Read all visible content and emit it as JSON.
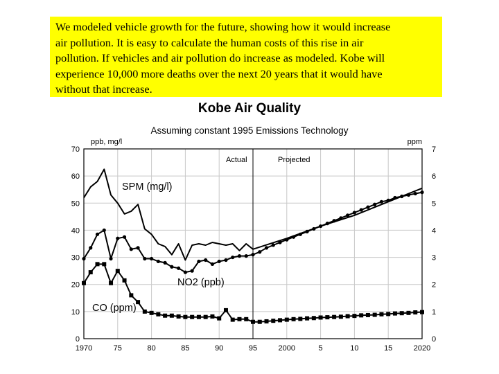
{
  "note": {
    "lines": [
      "We modeled vehicle growth for the future, showing how it would increase",
      "air pollution.  It is easy to calculate the human costs of this rise in air",
      "pollution.  If vehicles and air pollution do increase as modeled. Kobe will",
      "experience 10,000 more deaths over the next 20 years that it would have",
      "without that increase."
    ],
    "background": "#ffff00"
  },
  "chart_data": {
    "type": "line",
    "title": "Kobe Air Quality",
    "subtitle": "Assuming constant 1995 Emissions Technology",
    "y_left_label": "ppb, mg/l",
    "y_right_label": "ppm",
    "ylim_left": [
      0,
      70
    ],
    "ylim_right": [
      0,
      7
    ],
    "xlim": [
      1970,
      2020
    ],
    "x_ticks": [
      {
        "value": 1970,
        "label": "1970"
      },
      {
        "value": 1975,
        "label": "75"
      },
      {
        "value": 1980,
        "label": "80"
      },
      {
        "value": 1985,
        "label": "85"
      },
      {
        "value": 1990,
        "label": "90"
      },
      {
        "value": 1995,
        "label": "95"
      },
      {
        "value": 2000,
        "label": "2000"
      },
      {
        "value": 2005,
        "label": "5"
      },
      {
        "value": 2010,
        "label": "10"
      },
      {
        "value": 2015,
        "label": "15"
      },
      {
        "value": 2020,
        "label": "2020"
      }
    ],
    "y_left_ticks": [
      "0",
      "10",
      "20",
      "30",
      "40",
      "50",
      "60",
      "70"
    ],
    "y_right_ticks": [
      "0",
      "1",
      "2",
      "3",
      "4",
      "5",
      "6",
      "7"
    ],
    "grid": true,
    "divider_year": 1995,
    "period_labels": {
      "actual": "Actual",
      "projected": "Projected"
    },
    "series": [
      {
        "name": "SPM (mg/l)",
        "axis": "left",
        "marker": "none",
        "x": [
          1970,
          1971,
          1972,
          1973,
          1974,
          1975,
          1976,
          1977,
          1978,
          1979,
          1980,
          1981,
          1982,
          1983,
          1984,
          1985,
          1986,
          1987,
          1988,
          1989,
          1990,
          1991,
          1992,
          1993,
          1994,
          1995,
          2000,
          2005,
          2010,
          2015,
          2020
        ],
        "y": [
          52,
          56,
          58,
          62.5,
          53,
          50,
          46,
          47,
          49.5,
          40.5,
          38.5,
          35,
          34,
          31,
          35,
          29,
          34.5,
          35,
          34.5,
          35.5,
          35,
          34.5,
          35,
          32.5,
          35,
          33,
          37,
          41.5,
          45.5,
          50.5,
          55.5
        ]
      },
      {
        "name": "NO2 (ppb)",
        "axis": "left",
        "marker": "circle",
        "x": [
          1970,
          1971,
          1972,
          1973,
          1974,
          1975,
          1976,
          1977,
          1978,
          1979,
          1980,
          1981,
          1982,
          1983,
          1984,
          1985,
          1986,
          1987,
          1988,
          1989,
          1990,
          1991,
          1992,
          1993,
          1994,
          1995,
          1996,
          1997,
          1998,
          1999,
          2000,
          2001,
          2002,
          2003,
          2004,
          2005,
          2006,
          2007,
          2008,
          2009,
          2010,
          2011,
          2012,
          2013,
          2014,
          2015,
          2016,
          2017,
          2018,
          2019,
          2020
        ],
        "y": [
          29.5,
          33.5,
          38.5,
          40,
          29.5,
          37,
          37.5,
          33,
          33.5,
          29.5,
          29.5,
          28.5,
          28,
          26.5,
          26,
          24.5,
          25,
          28.5,
          29,
          27.5,
          28.5,
          29,
          30,
          30.5,
          30.5,
          31,
          32,
          33.5,
          34.5,
          35.5,
          36.5,
          37.5,
          38.5,
          39.5,
          40.5,
          41.5,
          42.5,
          43.5,
          44.5,
          45.5,
          46.5,
          47.5,
          48.5,
          49.5,
          50.5,
          51,
          52,
          52.5,
          53,
          53.5,
          54
        ]
      },
      {
        "name": "CO (ppm)",
        "axis": "right",
        "marker": "square",
        "x": [
          1970,
          1971,
          1972,
          1973,
          1974,
          1975,
          1976,
          1977,
          1978,
          1979,
          1980,
          1981,
          1982,
          1983,
          1984,
          1985,
          1986,
          1987,
          1988,
          1989,
          1990,
          1991,
          1992,
          1993,
          1994,
          1995,
          1996,
          1997,
          1998,
          1999,
          2000,
          2001,
          2002,
          2003,
          2004,
          2005,
          2006,
          2007,
          2008,
          2009,
          2010,
          2011,
          2012,
          2013,
          2014,
          2015,
          2016,
          2017,
          2018,
          2019,
          2020
        ],
        "y": [
          2.05,
          2.45,
          2.75,
          2.75,
          2.05,
          2.5,
          2.15,
          1.6,
          1.35,
          1.0,
          0.95,
          0.9,
          0.85,
          0.85,
          0.82,
          0.8,
          0.8,
          0.8,
          0.8,
          0.82,
          0.75,
          1.05,
          0.7,
          0.72,
          0.72,
          0.62,
          0.62,
          0.64,
          0.66,
          0.68,
          0.7,
          0.72,
          0.73,
          0.75,
          0.76,
          0.78,
          0.79,
          0.8,
          0.81,
          0.83,
          0.84,
          0.86,
          0.87,
          0.88,
          0.9,
          0.91,
          0.93,
          0.94,
          0.95,
          0.97,
          0.98
        ]
      }
    ],
    "series_label_positions": "inline"
  }
}
